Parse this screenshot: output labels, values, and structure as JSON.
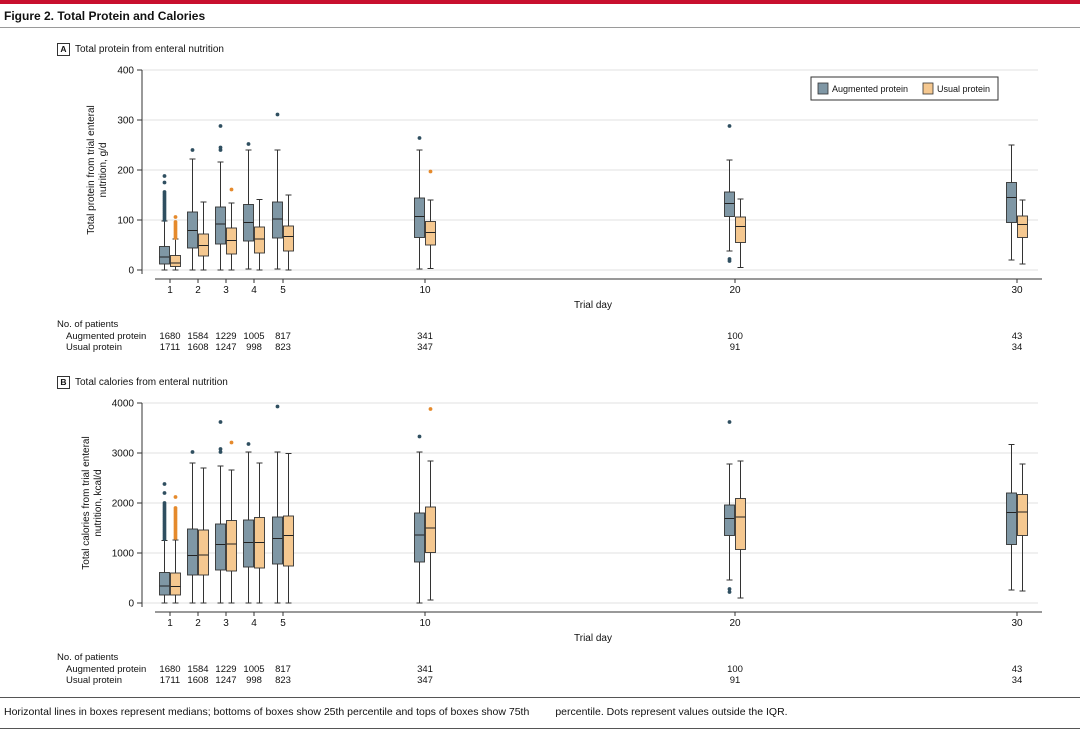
{
  "figure": {
    "title": "Figure 2. Total Protein and Calories",
    "caption_part1": "Horizontal lines in boxes represent medians; bottoms of boxes show 25th percentile and tops of boxes show 75th",
    "caption_part2": "percentile. Dots represent values outside the IQR."
  },
  "colors": {
    "augmented": "#7f97a5",
    "usual": "#f5c890",
    "augmented_dot": "#2f4f60",
    "usual_dot": "#e58a2c",
    "accent": "#c8102e"
  },
  "panels": [
    {
      "letter": "A",
      "title": "Total protein from enteral nutrition"
    },
    {
      "letter": "B",
      "title": "Total calories from enteral nutrition"
    }
  ],
  "counts_table": {
    "header": "No. of patients",
    "row_labels": [
      "Augmented protein",
      "Usual protein"
    ]
  },
  "chart_data": [
    {
      "type": "box",
      "title": "Total protein from enteral nutrition",
      "xlabel": "Trial day",
      "ylabel_lines": [
        "Total protein from trial enteral",
        "nutrition, g/d"
      ],
      "ylim": [
        0,
        400
      ],
      "yticks": [
        0,
        100,
        200,
        300,
        400
      ],
      "xticks": [
        1,
        2,
        3,
        4,
        5,
        10,
        20,
        30
      ],
      "legend_position": "top-right",
      "legend": [
        "Augmented protein",
        "Usual protein"
      ],
      "series": [
        {
          "name": "Augmented protein",
          "boxes": [
            {
              "day": 1,
              "whislo": 0,
              "q1": 12,
              "med": 26,
              "q3": 47,
              "whishi": 98
            },
            {
              "day": 2,
              "whislo": 0,
              "q1": 44,
              "med": 79,
              "q3": 116,
              "whishi": 222
            },
            {
              "day": 3,
              "whislo": 0,
              "q1": 52,
              "med": 92,
              "q3": 126,
              "whishi": 216
            },
            {
              "day": 4,
              "whislo": 2,
              "q1": 58,
              "med": 95,
              "q3": 131,
              "whishi": 240
            },
            {
              "day": 5,
              "whislo": 2,
              "q1": 64,
              "med": 102,
              "q3": 136,
              "whishi": 240
            },
            {
              "day": 10,
              "whislo": 2,
              "q1": 65,
              "med": 107,
              "q3": 144,
              "whishi": 240
            },
            {
              "day": 20,
              "whislo": 38,
              "q1": 107,
              "med": 133,
              "q3": 156,
              "whishi": 220
            },
            {
              "day": 30,
              "whislo": 20,
              "q1": 95,
              "med": 145,
              "q3": 175,
              "whishi": 250
            }
          ],
          "outliers": [
            {
              "day": 1,
              "values": [
                100,
                104,
                108,
                112,
                116,
                120,
                124,
                128,
                132,
                136,
                140,
                144,
                148,
                152,
                156,
                175,
                188
              ]
            },
            {
              "day": 2,
              "values": [
                240
              ]
            },
            {
              "day": 3,
              "values": [
                240,
                245,
                288
              ]
            },
            {
              "day": 4,
              "values": [
                252
              ]
            },
            {
              "day": 5,
              "values": [
                311
              ]
            },
            {
              "day": 10,
              "values": [
                264
              ]
            },
            {
              "day": 20,
              "values": [
                18,
                22,
                288
              ]
            }
          ]
        },
        {
          "name": "Usual protein",
          "boxes": [
            {
              "day": 1,
              "whislo": 0,
              "q1": 7,
              "med": 14,
              "q3": 29,
              "whishi": 62
            },
            {
              "day": 2,
              "whislo": 0,
              "q1": 28,
              "med": 49,
              "q3": 72,
              "whishi": 136
            },
            {
              "day": 3,
              "whislo": 0,
              "q1": 32,
              "med": 59,
              "q3": 84,
              "whishi": 134
            },
            {
              "day": 4,
              "whislo": 0,
              "q1": 34,
              "med": 62,
              "q3": 86,
              "whishi": 141
            },
            {
              "day": 5,
              "whislo": 0,
              "q1": 38,
              "med": 67,
              "q3": 88,
              "whishi": 150
            },
            {
              "day": 10,
              "whislo": 3,
              "q1": 50,
              "med": 75,
              "q3": 97,
              "whishi": 140
            },
            {
              "day": 20,
              "whislo": 5,
              "q1": 55,
              "med": 87,
              "q3": 106,
              "whishi": 142
            },
            {
              "day": 30,
              "whislo": 12,
              "q1": 65,
              "med": 91,
              "q3": 108,
              "whishi": 140
            }
          ],
          "outliers": [
            {
              "day": 1,
              "values": [
                64,
                68,
                72,
                76,
                80,
                84,
                88,
                92,
                96,
                106
              ]
            },
            {
              "day": 3,
              "values": [
                161
              ]
            },
            {
              "day": 10,
              "values": [
                197
              ]
            }
          ]
        }
      ],
      "counts": {
        "days": [
          1,
          2,
          3,
          4,
          5,
          10,
          20,
          30
        ],
        "augmented": [
          "1680",
          "1584",
          "1229",
          "1005",
          "817",
          "341",
          "100",
          "43"
        ],
        "usual": [
          "1711",
          "1608",
          "1247",
          "998",
          "823",
          "347",
          "91",
          "34"
        ]
      }
    },
    {
      "type": "box",
      "title": "Total calories from enteral nutrition",
      "xlabel": "Trial day",
      "ylabel_lines": [
        "Total calories from trial enteral",
        "nutrition, kcal/d"
      ],
      "ylim": [
        0,
        4000
      ],
      "yticks": [
        0,
        1000,
        2000,
        3000,
        4000
      ],
      "xticks": [
        1,
        2,
        3,
        4,
        5,
        10,
        20,
        30
      ],
      "series": [
        {
          "name": "Augmented protein",
          "boxes": [
            {
              "day": 1,
              "whislo": 0,
              "q1": 160,
              "med": 340,
              "q3": 610,
              "whishi": 1250
            },
            {
              "day": 2,
              "whislo": 0,
              "q1": 560,
              "med": 950,
              "q3": 1480,
              "whishi": 2800
            },
            {
              "day": 3,
              "whislo": 0,
              "q1": 660,
              "med": 1170,
              "q3": 1580,
              "whishi": 2740
            },
            {
              "day": 4,
              "whislo": 0,
              "q1": 720,
              "med": 1210,
              "q3": 1660,
              "whishi": 3020
            },
            {
              "day": 5,
              "whislo": 0,
              "q1": 780,
              "med": 1290,
              "q3": 1720,
              "whishi": 3020
            },
            {
              "day": 10,
              "whislo": 0,
              "q1": 820,
              "med": 1360,
              "q3": 1800,
              "whishi": 3020
            },
            {
              "day": 20,
              "whislo": 460,
              "q1": 1350,
              "med": 1690,
              "q3": 1960,
              "whishi": 2780
            },
            {
              "day": 30,
              "whislo": 260,
              "q1": 1170,
              "med": 1810,
              "q3": 2200,
              "whishi": 3170
            }
          ],
          "outliers": [
            {
              "day": 1,
              "values": [
                1280,
                1320,
                1360,
                1400,
                1440,
                1480,
                1520,
                1560,
                1600,
                1640,
                1680,
                1720,
                1760,
                1800,
                1840,
                1880,
                1920,
                1960,
                2000,
                2200,
                2380
              ]
            },
            {
              "day": 2,
              "values": [
                3020
              ]
            },
            {
              "day": 3,
              "values": [
                3020,
                3080,
                3620
              ]
            },
            {
              "day": 4,
              "values": [
                3180
              ]
            },
            {
              "day": 5,
              "values": [
                3930
              ]
            },
            {
              "day": 10,
              "values": [
                3330
              ]
            },
            {
              "day": 20,
              "values": [
                220,
                280,
                3620
              ]
            }
          ]
        },
        {
          "name": "Usual protein",
          "boxes": [
            {
              "day": 1,
              "whislo": 0,
              "q1": 160,
              "med": 330,
              "q3": 600,
              "whishi": 1260
            },
            {
              "day": 2,
              "whislo": 0,
              "q1": 560,
              "med": 960,
              "q3": 1460,
              "whishi": 2700
            },
            {
              "day": 3,
              "whislo": 0,
              "q1": 640,
              "med": 1180,
              "q3": 1650,
              "whishi": 2660
            },
            {
              "day": 4,
              "whislo": 0,
              "q1": 700,
              "med": 1210,
              "q3": 1710,
              "whishi": 2800
            },
            {
              "day": 5,
              "whislo": 0,
              "q1": 740,
              "med": 1350,
              "q3": 1740,
              "whishi": 2990
            },
            {
              "day": 10,
              "whislo": 60,
              "q1": 1010,
              "med": 1500,
              "q3": 1920,
              "whishi": 2840
            },
            {
              "day": 20,
              "whislo": 100,
              "q1": 1070,
              "med": 1720,
              "q3": 2090,
              "whishi": 2840
            },
            {
              "day": 30,
              "whislo": 240,
              "q1": 1350,
              "med": 1820,
              "q3": 2170,
              "whishi": 2780
            }
          ],
          "outliers": [
            {
              "day": 1,
              "values": [
                1300,
                1340,
                1380,
                1420,
                1460,
                1500,
                1540,
                1580,
                1620,
                1660,
                1700,
                1740,
                1780,
                1820,
                1860,
                1900,
                2120
              ]
            },
            {
              "day": 3,
              "values": [
                3210
              ]
            },
            {
              "day": 10,
              "values": [
                3880
              ]
            }
          ]
        }
      ],
      "counts": {
        "days": [
          1,
          2,
          3,
          4,
          5,
          10,
          20,
          30
        ],
        "augmented": [
          "1680",
          "1584",
          "1229",
          "1005",
          "817",
          "341",
          "100",
          "43"
        ],
        "usual": [
          "1711",
          "1608",
          "1247",
          "998",
          "823",
          "347",
          "91",
          "34"
        ]
      }
    }
  ]
}
